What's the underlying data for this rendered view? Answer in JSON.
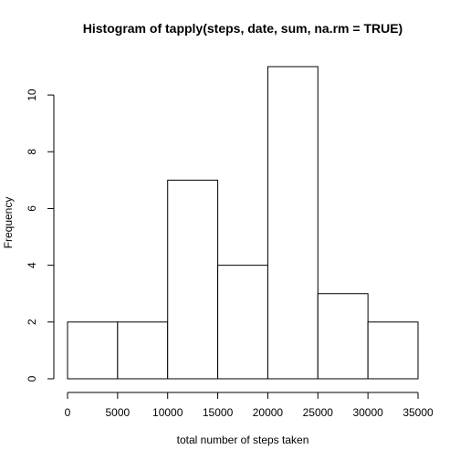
{
  "chart_data": {
    "type": "bar",
    "title": "Histogram of tapply(steps, date, sum, na.rm = TRUE)",
    "xlabel": "total number of steps taken",
    "ylabel": "Frequency",
    "bins": [
      {
        "from": 0,
        "to": 5000,
        "count": 2
      },
      {
        "from": 5000,
        "to": 10000,
        "count": 2
      },
      {
        "from": 10000,
        "to": 15000,
        "count": 7
      },
      {
        "from": 15000,
        "to": 20000,
        "count": 4
      },
      {
        "from": 20000,
        "to": 25000,
        "count": 11
      },
      {
        "from": 25000,
        "to": 30000,
        "count": 3
      },
      {
        "from": 30000,
        "to": 35000,
        "count": 2
      }
    ],
    "xlim": [
      0,
      35000
    ],
    "ylim": [
      0,
      11
    ],
    "x_ticks": [
      "0",
      "5000",
      "10000",
      "15000",
      "20000",
      "25000",
      "30000",
      "35000"
    ],
    "y_ticks": [
      "0",
      "2",
      "4",
      "6",
      "8",
      "10"
    ],
    "grid": false,
    "bar_fill": "#ffffff",
    "bar_stroke": "#000000"
  }
}
